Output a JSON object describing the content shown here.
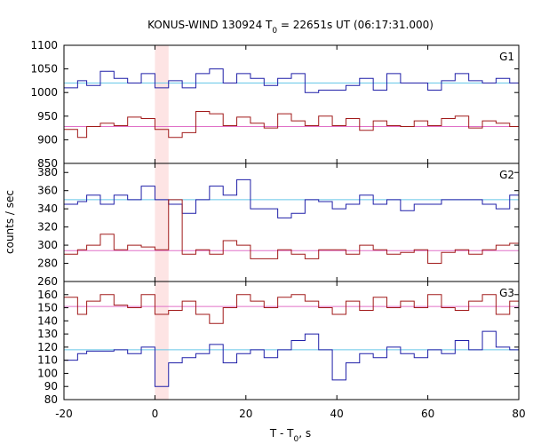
{
  "chart_data": {
    "type": "line",
    "title_main": "KONUS-WIND 130924 T",
    "title_sub": "0",
    "title_rest": " = 22651s UT (06:17:31.000)",
    "xlabel_main": "T - T",
    "xlabel_sub": "0",
    "xlabel_rest": ", s",
    "ylabel": "counts / sec",
    "xlim": [
      -20,
      80
    ],
    "x_ticks": [
      -20,
      0,
      20,
      40,
      60,
      80
    ],
    "x_tick_labels": [
      "-20",
      "0",
      "20",
      "40",
      "60",
      "80"
    ],
    "highlight_interval": [
      0,
      3
    ],
    "grid": false,
    "colors": {
      "blue": "#1f1fa8",
      "red": "#a11a1a",
      "blue_bg": "#66c8e8",
      "red_bg": "#e070c8",
      "highlight": "#fde4e4"
    },
    "panels": [
      {
        "label": "G1",
        "ylim": [
          850,
          1100
        ],
        "y_ticks": [
          850,
          900,
          950,
          1000,
          1050,
          1100
        ],
        "y_tick_labels": [
          "850",
          "900",
          "950",
          "1000",
          "1050",
          "1100"
        ],
        "series": [
          {
            "color_key": "blue",
            "step_x": [
              -20,
              -17,
              -15,
              -12,
              -9,
              -6,
              -3,
              0,
              3,
              6,
              9,
              12,
              15,
              18,
              21,
              24,
              27,
              30,
              33,
              36,
              39,
              42,
              45,
              48,
              51,
              54,
              57,
              60,
              63,
              66,
              69,
              72,
              75,
              78,
              80
            ],
            "values": [
              1010,
              1025,
              1015,
              1045,
              1030,
              1020,
              1040,
              1010,
              1025,
              1010,
              1040,
              1050,
              1020,
              1040,
              1030,
              1015,
              1030,
              1040,
              1000,
              1005,
              1005,
              1015,
              1030,
              1005,
              1040,
              1020,
              1020,
              1005,
              1025,
              1040,
              1025,
              1020,
              1030,
              1020
            ]
          },
          {
            "color_key": "red",
            "step_x": [
              -20,
              -17,
              -15,
              -12,
              -9,
              -6,
              -3,
              0,
              3,
              6,
              9,
              12,
              15,
              18,
              21,
              24,
              27,
              30,
              33,
              36,
              39,
              42,
              45,
              48,
              51,
              54,
              57,
              60,
              63,
              66,
              69,
              72,
              75,
              78,
              80
            ],
            "values": [
              922,
              905,
              928,
              935,
              930,
              948,
              945,
              922,
              905,
              915,
              960,
              955,
              930,
              948,
              935,
              925,
              955,
              940,
              930,
              950,
              930,
              945,
              920,
              940,
              930,
              928,
              940,
              930,
              945,
              950,
              925,
              940,
              935,
              928
            ]
          },
          {
            "color_key": "blue_bg",
            "background_level": 1020
          },
          {
            "color_key": "red_bg",
            "background_level": 928
          }
        ]
      },
      {
        "label": "G2",
        "ylim": [
          260,
          390
        ],
        "y_ticks": [
          260,
          280,
          300,
          320,
          340,
          360,
          380
        ],
        "y_tick_labels": [
          "260",
          "280",
          "300",
          "320",
          "340",
          "360",
          "380"
        ],
        "series": [
          {
            "color_key": "blue",
            "step_x": [
              -20,
              -17,
              -15,
              -12,
              -9,
              -6,
              -3,
              0,
              3,
              6,
              9,
              12,
              15,
              18,
              21,
              24,
              27,
              30,
              33,
              36,
              39,
              42,
              45,
              48,
              51,
              54,
              57,
              60,
              63,
              66,
              69,
              72,
              75,
              78,
              80
            ],
            "values": [
              345,
              348,
              355,
              345,
              355,
              350,
              365,
              350,
              345,
              335,
              350,
              365,
              355,
              372,
              340,
              340,
              330,
              335,
              350,
              348,
              340,
              345,
              355,
              345,
              350,
              338,
              345,
              345,
              350,
              350,
              350,
              345,
              340,
              355
            ]
          },
          {
            "color_key": "red",
            "step_x": [
              -20,
              -17,
              -15,
              -12,
              -9,
              -6,
              -3,
              0,
              3,
              6,
              9,
              12,
              15,
              18,
              21,
              24,
              27,
              30,
              33,
              36,
              39,
              42,
              45,
              48,
              51,
              54,
              57,
              60,
              63,
              66,
              69,
              72,
              75,
              78,
              80
            ],
            "values": [
              290,
              295,
              300,
              312,
              295,
              300,
              298,
              295,
              350,
              290,
              295,
              290,
              305,
              300,
              285,
              285,
              295,
              290,
              285,
              295,
              295,
              290,
              300,
              295,
              290,
              292,
              295,
              280,
              292,
              295,
              290,
              295,
              300,
              302
            ]
          },
          {
            "color_key": "blue_bg",
            "background_level": 350
          },
          {
            "color_key": "red_bg",
            "background_level": 294
          }
        ]
      },
      {
        "label": "G3",
        "ylim": [
          80,
          170
        ],
        "y_ticks": [
          80,
          90,
          100,
          110,
          120,
          130,
          140,
          150,
          160
        ],
        "y_tick_labels": [
          "80",
          "90",
          "100",
          "110",
          "120",
          "130",
          "140",
          "150",
          "160"
        ],
        "series": [
          {
            "color_key": "red",
            "step_x": [
              -20,
              -17,
              -15,
              -12,
              -9,
              -6,
              -3,
              0,
              3,
              6,
              9,
              12,
              15,
              18,
              21,
              24,
              27,
              30,
              33,
              36,
              39,
              42,
              45,
              48,
              51,
              54,
              57,
              60,
              63,
              66,
              69,
              72,
              75,
              78,
              80
            ],
            "values": [
              158,
              145,
              155,
              160,
              152,
              150,
              160,
              145,
              148,
              155,
              145,
              138,
              150,
              160,
              155,
              150,
              158,
              160,
              155,
              150,
              145,
              155,
              148,
              158,
              150,
              155,
              150,
              160,
              150,
              148,
              155,
              160,
              145,
              155
            ]
          },
          {
            "color_key": "blue",
            "step_x": [
              -20,
              -17,
              -15,
              -12,
              -9,
              -6,
              -3,
              0,
              3,
              6,
              9,
              12,
              15,
              18,
              21,
              24,
              27,
              30,
              33,
              36,
              39,
              42,
              45,
              48,
              51,
              54,
              57,
              60,
              63,
              66,
              69,
              72,
              75,
              78,
              80
            ],
            "values": [
              110,
              115,
              117,
              117,
              118,
              115,
              120,
              90,
              108,
              112,
              115,
              122,
              108,
              115,
              118,
              112,
              118,
              125,
              130,
              118,
              95,
              108,
              115,
              112,
              120,
              115,
              112,
              118,
              115,
              125,
              118,
              132,
              120,
              118
            ]
          },
          {
            "color_key": "red_bg",
            "background_level": 151
          },
          {
            "color_key": "blue_bg",
            "background_level": 118
          }
        ]
      }
    ]
  }
}
